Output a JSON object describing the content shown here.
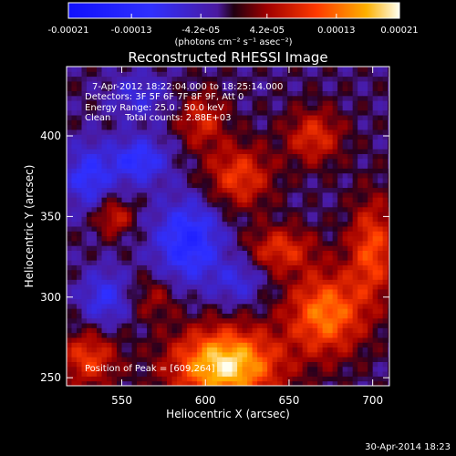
{
  "chart_data": {
    "type": "heatmap",
    "title": "Reconstructed RHESSI Image",
    "xlabel": "Heliocentric X (arcsec)",
    "ylabel": "Heliocentric Y (arcsec)",
    "xlim": [
      517,
      710
    ],
    "ylim": [
      245,
      443
    ],
    "x_ticks": [
      550,
      600,
      650,
      700
    ],
    "y_ticks": [
      250,
      300,
      350,
      400
    ],
    "colorbar": {
      "min": -0.00021,
      "max": 0.00021,
      "tick_values": [
        -0.00021,
        -0.00013,
        -4.2e-05,
        4.2e-05,
        0.00013,
        0.00021
      ],
      "tick_labels": [
        "-0.00021",
        "-0.00013",
        "-4.2e-05",
        "4.2e-05",
        "0.00013",
        "0.00021"
      ],
      "unit_label": "(photons cm⁻² s⁻¹ asec⁻²)"
    },
    "annotations": {
      "time_range": "7-Apr-2012 18:22:04.000 to 18:25:14.000",
      "detectors": "Detectors: 3F 5F 6F 7F 8F 9F, Att 0",
      "energy": "Energy Range: 25.0 - 50.0 keV",
      "clean": "Clean     Total counts: 2.88E+03",
      "peak": "Position of Peak = [609,264]"
    },
    "blobs": [
      {
        "x": 612,
        "y": 258,
        "sx": 22,
        "sy": 16,
        "amp": 1.0
      },
      {
        "x": 672,
        "y": 290,
        "sx": 16,
        "sy": 18,
        "amp": 0.7
      },
      {
        "x": 700,
        "y": 330,
        "sx": 10,
        "sy": 22,
        "amp": 0.55
      },
      {
        "x": 645,
        "y": 330,
        "sx": 14,
        "sy": 10,
        "amp": 0.45
      },
      {
        "x": 620,
        "y": 375,
        "sx": 14,
        "sy": 14,
        "amp": 0.5
      },
      {
        "x": 665,
        "y": 400,
        "sx": 12,
        "sy": 12,
        "amp": 0.45
      },
      {
        "x": 598,
        "y": 410,
        "sx": 10,
        "sy": 12,
        "amp": 0.4
      },
      {
        "x": 545,
        "y": 350,
        "sx": 8,
        "sy": 8,
        "amp": 0.4
      },
      {
        "x": 570,
        "y": 300,
        "sx": 10,
        "sy": 10,
        "amp": 0.25
      },
      {
        "x": 530,
        "y": 262,
        "sx": 12,
        "sy": 12,
        "amp": 0.5
      },
      {
        "x": 560,
        "y": 385,
        "sx": 12,
        "sy": 10,
        "amp": -0.5
      },
      {
        "x": 590,
        "y": 335,
        "sx": 14,
        "sy": 18,
        "amp": -0.6
      },
      {
        "x": 540,
        "y": 300,
        "sx": 10,
        "sy": 12,
        "amp": -0.4
      },
      {
        "x": 530,
        "y": 375,
        "sx": 10,
        "sy": 14,
        "amp": -0.45
      },
      {
        "x": 560,
        "y": 425,
        "sx": 12,
        "sy": 10,
        "amp": -0.3
      },
      {
        "x": 620,
        "y": 310,
        "sx": 10,
        "sy": 10,
        "amp": -0.3
      }
    ],
    "timestamp": "30-Apr-2014 18:23"
  }
}
